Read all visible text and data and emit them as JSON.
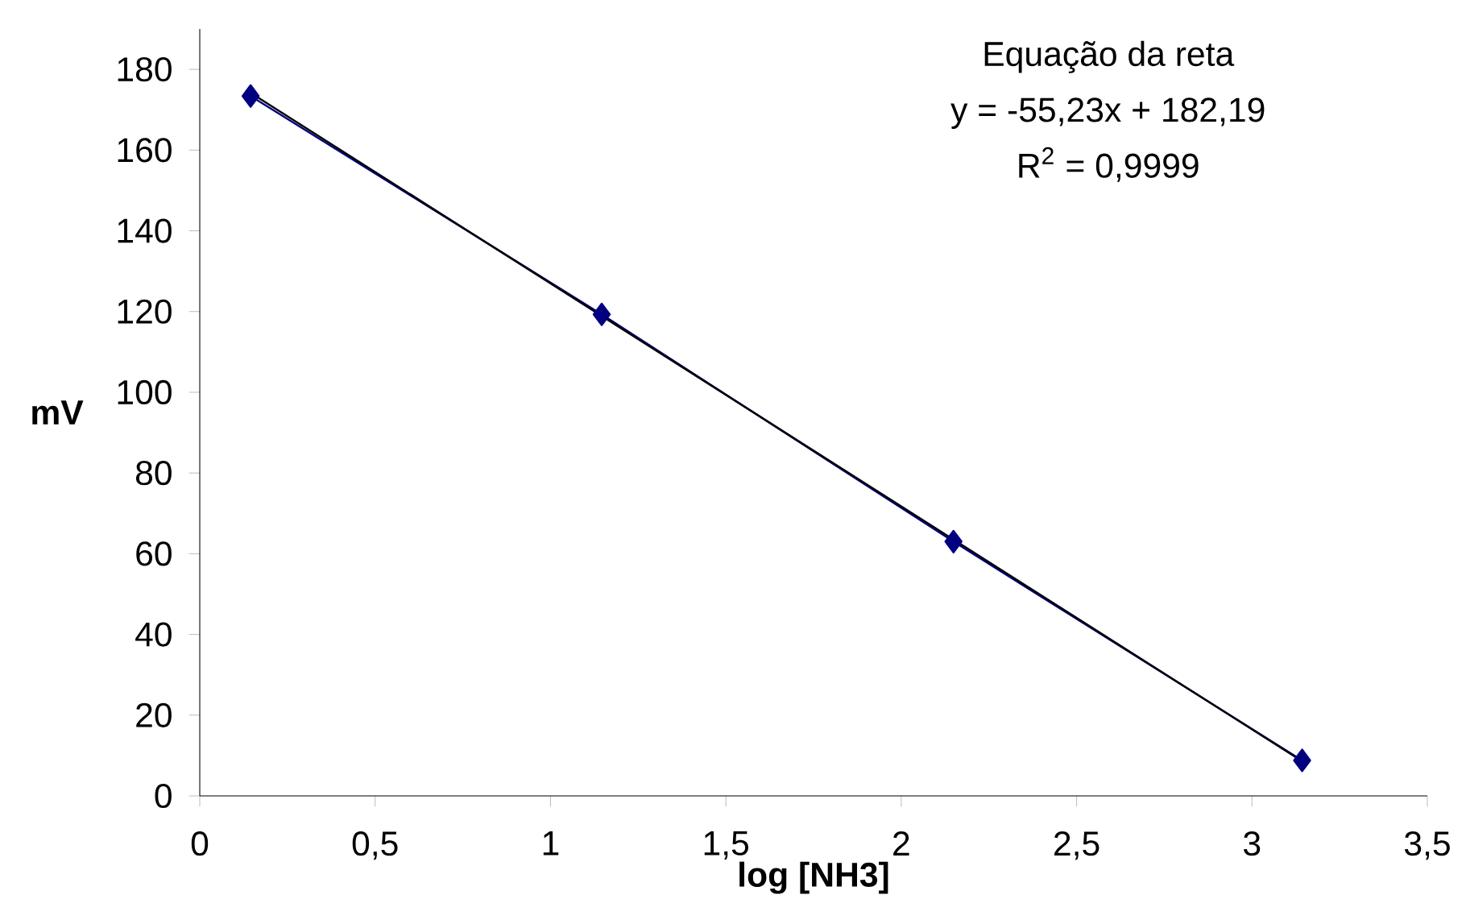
{
  "chart_data": {
    "type": "line",
    "xlabel": "log [NH3]",
    "ylabel": "mV",
    "annotations": [
      "Equação da reta",
      "y = -55,23x + 182,19",
      "R$^{2}$ = 0,9999"
    ],
    "marker": "diamond",
    "series": [
      {
        "color": "#000080",
        "x": [
          0.145,
          1.146,
          2.149,
          3.143
        ],
        "values": [
          173.4,
          119.3,
          63.0,
          8.8
        ]
      },
      {
        "type": "line",
        "color": "#000000",
        "marker": "none",
        "x": [
          0.145,
          3.143
        ],
        "values": [
          174.2,
          8.6
        ]
      }
    ],
    "xlim": [
      0,
      3.5
    ],
    "ylim": [
      0,
      190
    ],
    "xticks": [
      0,
      {
        "value": 0.5,
        "label": "0,5"
      },
      1,
      {
        "value": 1.5,
        "label": "1,5"
      },
      2,
      {
        "value": 2.5,
        "label": "2,5"
      },
      3,
      {
        "value": 3.5,
        "label": "3,5"
      }
    ],
    "yticks": [
      0,
      20,
      40,
      60,
      80,
      100,
      120,
      140,
      160,
      180
    ],
    "grid": false
  }
}
